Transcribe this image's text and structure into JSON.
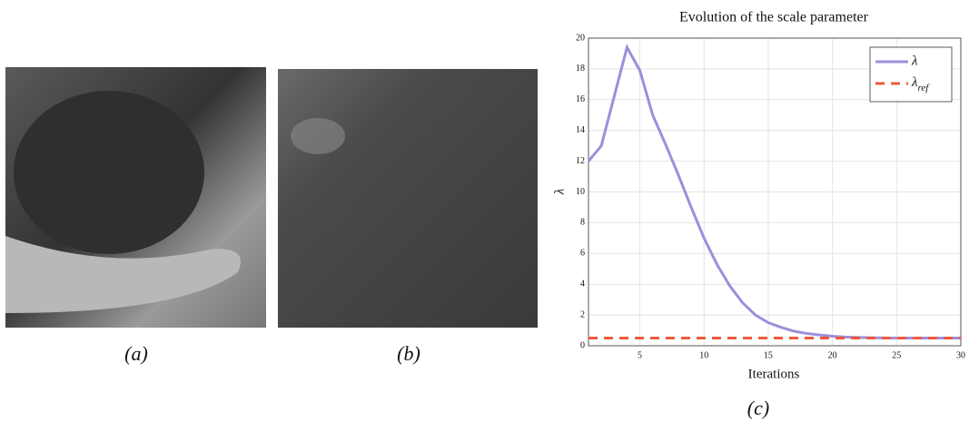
{
  "panels": [
    {
      "caption": "(a)"
    },
    {
      "caption": "(b)"
    }
  ],
  "chart_caption": "(c)",
  "chart_data": {
    "type": "line",
    "title": "Evolution of the scale parameter",
    "x_label": "Iterations",
    "y_label": "λ",
    "x": [
      1,
      2,
      3,
      4,
      5,
      6,
      7,
      8,
      9,
      10,
      11,
      12,
      13,
      14,
      15,
      16,
      17,
      18,
      19,
      20,
      21,
      22,
      23,
      24,
      25,
      26,
      27,
      28,
      29,
      30
    ],
    "series": [
      {
        "name": "λ",
        "color": "#9b8fdc",
        "dash": false,
        "values": [
          12.0,
          13.0,
          16.2,
          19.4,
          17.9,
          15.0,
          13.1,
          11.1,
          9.0,
          7.0,
          5.3,
          3.9,
          2.8,
          2.0,
          1.5,
          1.2,
          0.95,
          0.8,
          0.7,
          0.62,
          0.57,
          0.54,
          0.52,
          0.51,
          0.5,
          0.5,
          0.5,
          0.5,
          0.5,
          0.5
        ]
      },
      {
        "name": "λref",
        "color": "#ef5a3c",
        "dash": true,
        "values": [
          0.5,
          0.5,
          0.5,
          0.5,
          0.5,
          0.5,
          0.5,
          0.5,
          0.5,
          0.5,
          0.5,
          0.5,
          0.5,
          0.5,
          0.5,
          0.5,
          0.5,
          0.5,
          0.5,
          0.5,
          0.5,
          0.5,
          0.5,
          0.5,
          0.5,
          0.5,
          0.5,
          0.5,
          0.5,
          0.5
        ]
      }
    ],
    "xlim": [
      1,
      30
    ],
    "xticks": [
      5,
      10,
      15,
      20,
      25,
      30
    ],
    "ylim": [
      0,
      20
    ],
    "yticks": [
      0,
      2,
      4,
      6,
      8,
      10,
      12,
      14,
      16,
      18,
      20
    ],
    "grid": true,
    "legend": "upper right"
  }
}
